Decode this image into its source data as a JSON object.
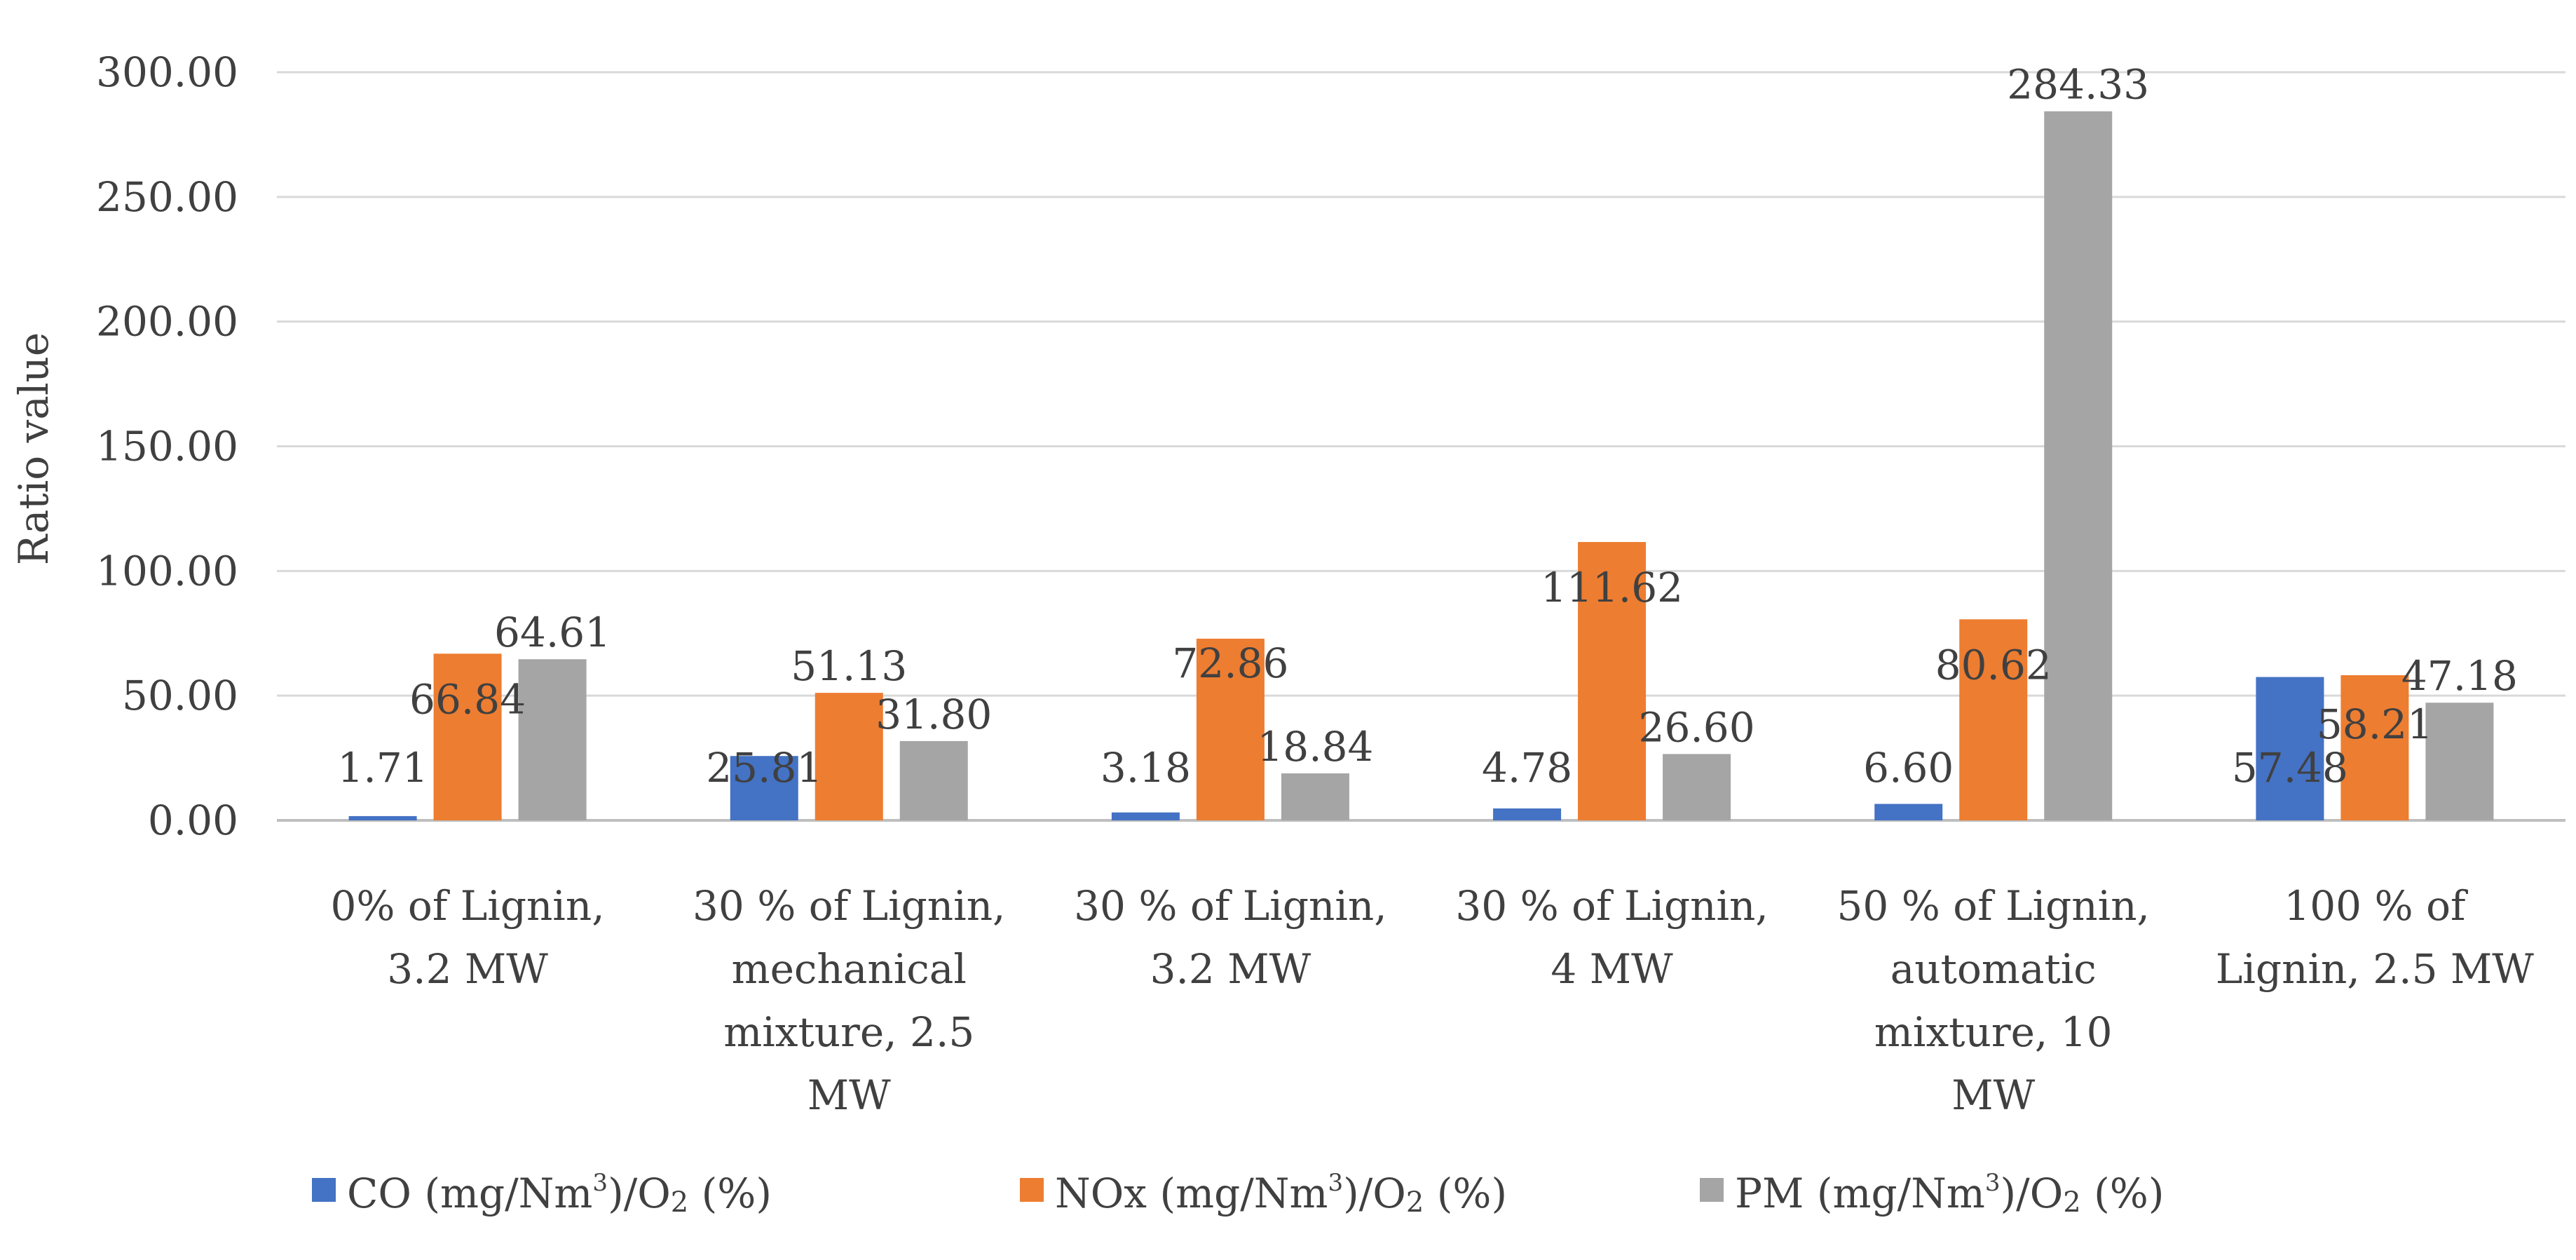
{
  "chart_data": {
    "type": "bar",
    "title": "",
    "xlabel": "",
    "ylabel": "Ratio value",
    "ylim": [
      0,
      300
    ],
    "yticks": [
      "0.00",
      "50.00",
      "100.00",
      "150.00",
      "200.00",
      "250.00",
      "300.00"
    ],
    "grid": true,
    "legend_position": "bottom",
    "categories": [
      [
        "0% of Lignin,",
        "3.2 MW"
      ],
      [
        "30 % of Lignin,",
        "mechanical",
        "mixture, 2.5",
        "MW"
      ],
      [
        "30 % of Lignin,",
        "3.2 MW"
      ],
      [
        "30 % of Lignin,",
        "4 MW"
      ],
      [
        "50 % of Lignin,",
        "automatic",
        "mixture, 10",
        "MW"
      ],
      [
        "100 % of",
        "Lignin, 2.5 MW"
      ]
    ],
    "series": [
      {
        "name": "CO (mg/Nm3)/O2 (%)",
        "legend": {
          "a": "CO (mg/Nm",
          "b": "3",
          "c": ")/O",
          "d": "2",
          "e": " (%)"
        },
        "color": "#4472c4",
        "values": [
          1.71,
          25.81,
          3.18,
          4.78,
          6.6,
          57.48
        ],
        "labels": [
          "1.71",
          "25.81",
          "3.18",
          "4.78",
          "6.60",
          "57.48"
        ]
      },
      {
        "name": "NOx (mg/Nm3)/O2 (%)",
        "legend": {
          "a": "NOx (mg/Nm",
          "b": "3",
          "c": ")/O",
          "d": "2",
          "e": " (%)"
        },
        "color": "#ed7d31",
        "values": [
          66.84,
          51.13,
          72.86,
          111.62,
          80.62,
          58.21
        ],
        "labels": [
          "66.84",
          "51.13",
          "72.86",
          "111.62",
          "80.62",
          "58.21"
        ]
      },
      {
        "name": "PM (mg/Nm3)/O2 (%)",
        "legend": {
          "a": "PM (mg/Nm",
          "b": "3",
          "c": ")/O",
          "d": "2",
          "e": " (%)"
        },
        "color": "#a5a5a5",
        "values": [
          64.61,
          31.8,
          18.84,
          26.6,
          284.33,
          47.18
        ],
        "labels": [
          "64.61",
          "31.80",
          "18.84",
          "26.60",
          "284.33",
          "47.18"
        ]
      }
    ]
  }
}
